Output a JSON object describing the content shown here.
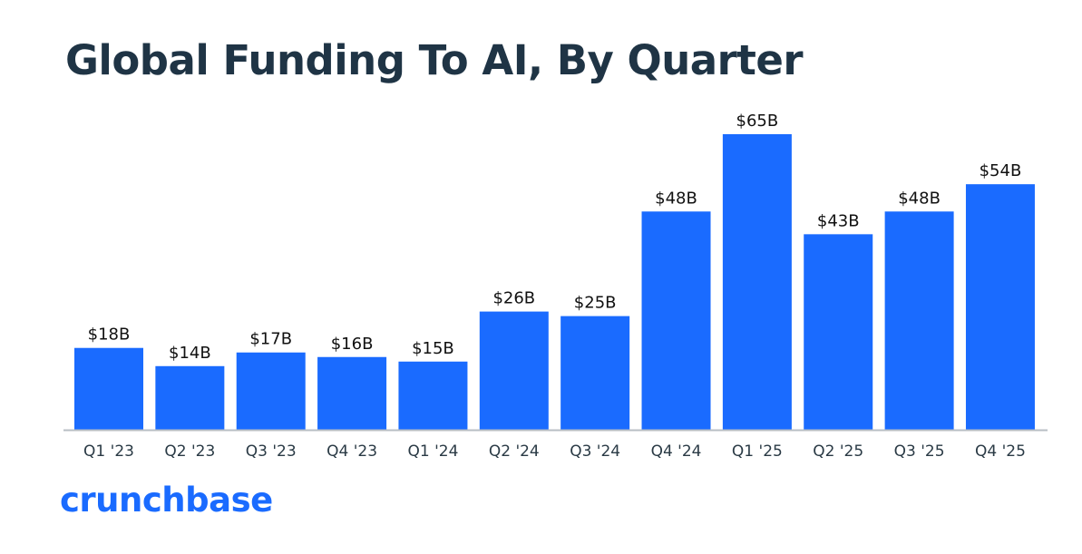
{
  "chart_data": {
    "type": "bar",
    "title": "Global Funding To AI, By Quarter",
    "categories": [
      "Q1 '23",
      "Q2 '23",
      "Q3 '23",
      "Q4 '23",
      "Q1 '24",
      "Q2 '24",
      "Q3 '24",
      "Q4 '24",
      "Q1 '25",
      "Q2 '25",
      "Q3 '25",
      "Q4 '25"
    ],
    "values": [
      18,
      14,
      17,
      16,
      15,
      26,
      25,
      48,
      65,
      43,
      48,
      54
    ],
    "data_labels": [
      "$18B",
      "$14B",
      "$17B",
      "$16B",
      "$15B",
      "$26B",
      "$25B",
      "$48B",
      "$65B",
      "$43B",
      "$48B",
      "$54B"
    ],
    "xlabel": "",
    "ylabel": "",
    "ylim": [
      0,
      65
    ],
    "grid": false,
    "bar_color": "#1a6bff"
  },
  "branding": {
    "logo": "crunchbase"
  }
}
